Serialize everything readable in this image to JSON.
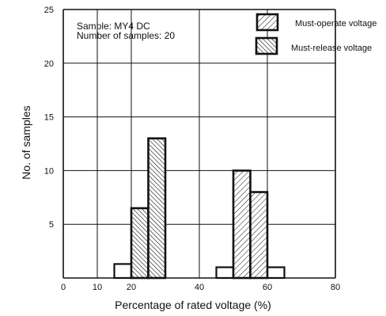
{
  "chart_data": {
    "type": "bar",
    "ylabel": "No. of samples",
    "xlabel": "Percentage of rated voltage (%)",
    "annotation": [
      "Sample: MY4 DC",
      "Number of samples: 20"
    ],
    "x_ticks": [
      "0",
      "10",
      "20",
      "40",
      "60",
      "80"
    ],
    "y_ticks": [
      "5",
      "10",
      "15",
      "20",
      "25"
    ],
    "xlim": [
      0,
      80
    ],
    "ylim": [
      0,
      25
    ],
    "grid": true,
    "legend_placement": "top-right",
    "series": [
      {
        "name": "Must-operate voltage",
        "hatch": "light",
        "bins": [
          {
            "x0": 50,
            "x1": 55,
            "value": 10
          },
          {
            "x0": 55,
            "x1": 60,
            "value": 8
          }
        ]
      },
      {
        "name": "Must-release voltage",
        "hatch": "dense",
        "bins": [
          {
            "x0": 20,
            "x1": 25,
            "value": 6.5
          },
          {
            "x0": 25,
            "x1": 30,
            "value": 13
          }
        ]
      }
    ],
    "outline_bars": [
      {
        "x0": 15,
        "x1": 20,
        "value": 1.3
      },
      {
        "x0": 45,
        "x1": 50,
        "value": 1
      },
      {
        "x0": 60,
        "x1": 65,
        "value": 1
      }
    ]
  }
}
